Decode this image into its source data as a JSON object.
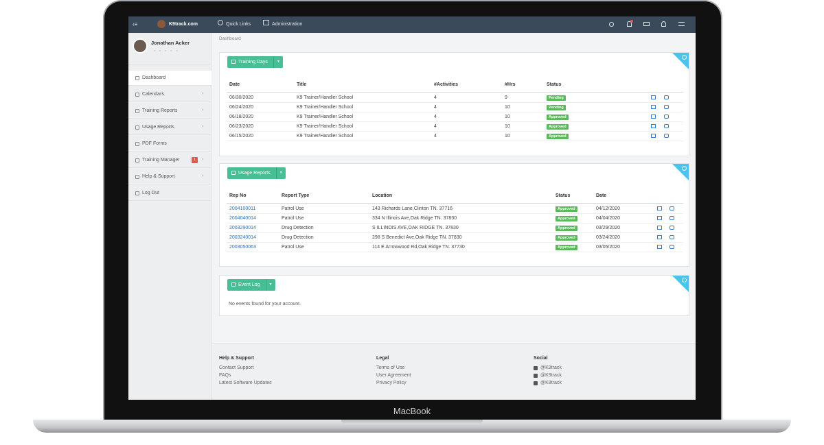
{
  "device_label": "MacBook",
  "topbar": {
    "brand": "K9track.com",
    "links": [
      "Quick Links",
      "Administration"
    ]
  },
  "user": {
    "name": "Jonathan Acker"
  },
  "sidebar": {
    "items": [
      {
        "label": "Dashboard"
      },
      {
        "label": "Calendars"
      },
      {
        "label": "Training Reports"
      },
      {
        "label": "Usage Reports"
      },
      {
        "label": "PDF Forms"
      },
      {
        "label": "Training Manager",
        "badge": "1"
      },
      {
        "label": "Help & Support"
      },
      {
        "label": "Log Out"
      }
    ]
  },
  "breadcrumb": "Dashboard",
  "panels": [
    {
      "button": "Training Days",
      "columns": [
        "Date",
        "Title",
        "#Activities",
        "#Hrs",
        "Status"
      ],
      "rows": [
        [
          "06/30/2020",
          "K9 Trainer/Handler School",
          "4",
          "9",
          "Pending"
        ],
        [
          "06/24/2020",
          "K9 Trainer/Handler School",
          "4",
          "10",
          "Pending"
        ],
        [
          "06/18/2020",
          "K9 Trainer/Handler School",
          "4",
          "10",
          "Approved"
        ],
        [
          "06/23/2020",
          "K9 Trainer/Handler School",
          "4",
          "10",
          "Approved"
        ],
        [
          "06/15/2020",
          "K9 Trainer/Handler School",
          "4",
          "10",
          "Approved"
        ]
      ]
    },
    {
      "button": "Usage Reports",
      "columns": [
        "Rep No",
        "Report Type",
        "Location",
        "Status",
        "Date"
      ],
      "rows": [
        [
          "2004100011",
          "Patrol Use",
          "143 Richards Lane,Clinton TN. 37716",
          "Approved",
          "04/12/2020"
        ],
        [
          "2004040014",
          "Patrol Use",
          "334 N Illinois Ave,Oak Ridge TN. 37830",
          "Approved",
          "04/04/2020"
        ],
        [
          "2003290014",
          "Drug Detection",
          "S ILLINOIS AVE,OAK RIDGE TN. 37830",
          "Approved",
          "03/29/2020"
        ],
        [
          "2003240014",
          "Drug Detection",
          "298 S Benedict Ave,Oak Ridge TN. 37830",
          "Approved",
          "03/24/2020"
        ],
        [
          "2003050063",
          "Patrol Use",
          "114 E Arrowwood Rd,Oak Ridge TN. 37730",
          "Approved",
          "03/05/2020"
        ]
      ]
    },
    {
      "button": "Event Log",
      "message": "No events found for your account."
    }
  ],
  "footer": [
    {
      "heading": "Help & Support",
      "links": [
        "Contact Support",
        "FAQs",
        "Latest Software Updates"
      ]
    },
    {
      "heading": "Legal",
      "links": [
        "Terms of Use",
        "User Agreement",
        "Privacy Policy"
      ]
    },
    {
      "heading": "Social",
      "links": [
        "@K9track",
        "@K9track",
        "@K9track"
      ]
    }
  ]
}
